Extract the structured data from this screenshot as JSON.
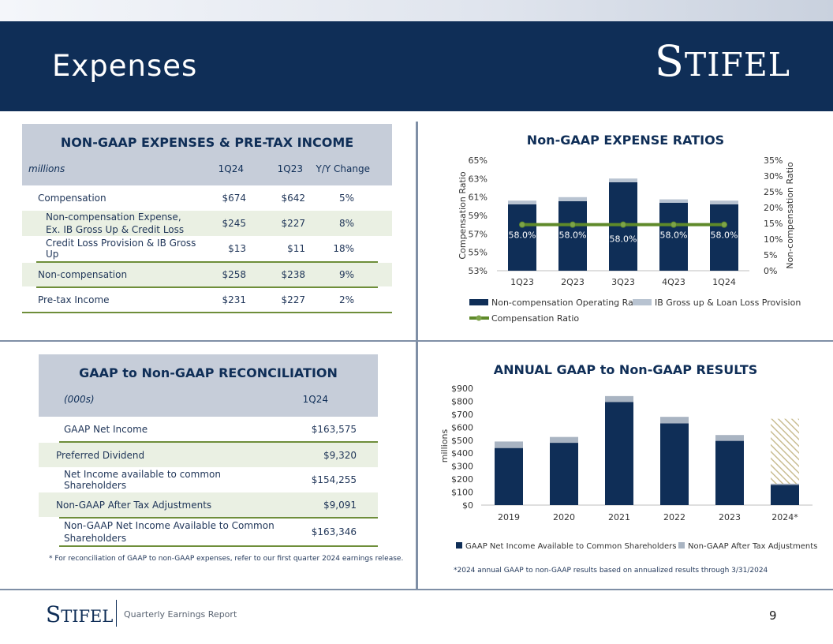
{
  "header": {
    "title": "Expenses",
    "logo_initial": "S",
    "logo_rest": "TIFEL"
  },
  "table1": {
    "title": "NON-GAAP EXPENSES & PRE-TAX INCOME",
    "columns": [
      "millions",
      "1Q24",
      "1Q23",
      "Y/Y Change"
    ],
    "rows": [
      {
        "label": "Compensation",
        "q1": "$674",
        "q2": "$642",
        "chg": "5%"
      },
      {
        "label": "Non-compensation Expense,",
        "label2": "Ex. IB Gross Up & Credit Loss",
        "q1": "$245",
        "q2": "$227",
        "chg": "8%"
      },
      {
        "label": "Credit Loss Provision & IB Gross Up",
        "q1": "$13",
        "q2": "$11",
        "chg": "18%"
      },
      {
        "label": "Non-compensation",
        "q1": "$258",
        "q2": "$238",
        "chg": "9%"
      },
      {
        "label": "Pre-tax Income",
        "q1": "$231",
        "q2": "$227",
        "chg": "2%"
      }
    ]
  },
  "table2": {
    "title": "GAAP to Non-GAAP RECONCILIATION",
    "columns": [
      "(000s)",
      "1Q24"
    ],
    "rows": [
      {
        "label": "GAAP Net Income",
        "v": "$163,575"
      },
      {
        "label": "Preferred Dividend",
        "v": "$9,320"
      },
      {
        "label": "Net Income available to common Shareholders",
        "v": "$154,255"
      },
      {
        "label": "Non-GAAP After Tax Adjustments",
        "v": "$9,091"
      },
      {
        "label": "Non-GAAP Net Income Available to Common",
        "label2": "Shareholders",
        "v": "$163,346"
      }
    ],
    "note": "* For reconciliation of GAAP to non-GAAP expenses, refer to our first quarter 2024 earnings release."
  },
  "chart_data": [
    {
      "type": "bar",
      "title": "Non-GAAP EXPENSE RATIOS",
      "categories": [
        "1Q23",
        "2Q23",
        "3Q23",
        "4Q23",
        "1Q24"
      ],
      "ylabel": "Compensation Ratio",
      "y2label": "Non-compensation Ratio",
      "ylim": [
        53,
        65
      ],
      "yticks": [
        "53%",
        "55%",
        "57%",
        "59%",
        "61%",
        "63%",
        "65%"
      ],
      "y2lim": [
        0,
        35
      ],
      "y2ticks": [
        "0%",
        "5%",
        "10%",
        "15%",
        "20%",
        "25%",
        "30%",
        "35%"
      ],
      "series": [
        {
          "name": "Non-compensation Operating Ratio",
          "axis": "secondary",
          "color": "#0f2e57",
          "values": [
            21.0,
            22.0,
            28.0,
            21.5,
            21.0
          ]
        },
        {
          "name": "IB Gross up & Loan Loss Provision",
          "axis": "secondary",
          "color": "#b8c3d1",
          "values": [
            1.2,
            1.3,
            1.2,
            1.1,
            1.2
          ]
        },
        {
          "name": "Compensation Ratio",
          "type": "line",
          "axis": "primary",
          "color": "#5f8a2a",
          "values": [
            58.0,
            58.0,
            58.0,
            58.0,
            58.0
          ]
        }
      ],
      "data_labels": [
        "58.0%",
        "58.0%",
        "58.0%",
        "58.0%",
        "58.0%"
      ]
    },
    {
      "type": "bar",
      "title": "ANNUAL GAAP to Non-GAAP RESULTS",
      "categories": [
        "2019",
        "2020",
        "2021",
        "2022",
        "2023",
        "2024*"
      ],
      "ylabel": "millions",
      "ylim": [
        0,
        900
      ],
      "yticks": [
        "$0",
        "$100",
        "$200",
        "$300",
        "$400",
        "$500",
        "$600",
        "$700",
        "$800",
        "$900"
      ],
      "series": [
        {
          "name": "GAAP Net Income Available to Common Shareholders",
          "color": "#0f2e57",
          "values": [
            440,
            480,
            795,
            630,
            495,
            155
          ]
        },
        {
          "name": "Non-GAAP After Tax Adjustments",
          "color": "#a9b4c2",
          "values": [
            50,
            45,
            45,
            50,
            45,
            10
          ]
        }
      ],
      "annualized_total_2024": 665,
      "note": "*2024 annual GAAP to non-GAAP results based on annualized results through 3/31/2024"
    }
  ],
  "footer": {
    "logo_initial": "S",
    "logo_rest": "TIFEL",
    "text": "Quarterly Earnings Report",
    "page": "9"
  }
}
